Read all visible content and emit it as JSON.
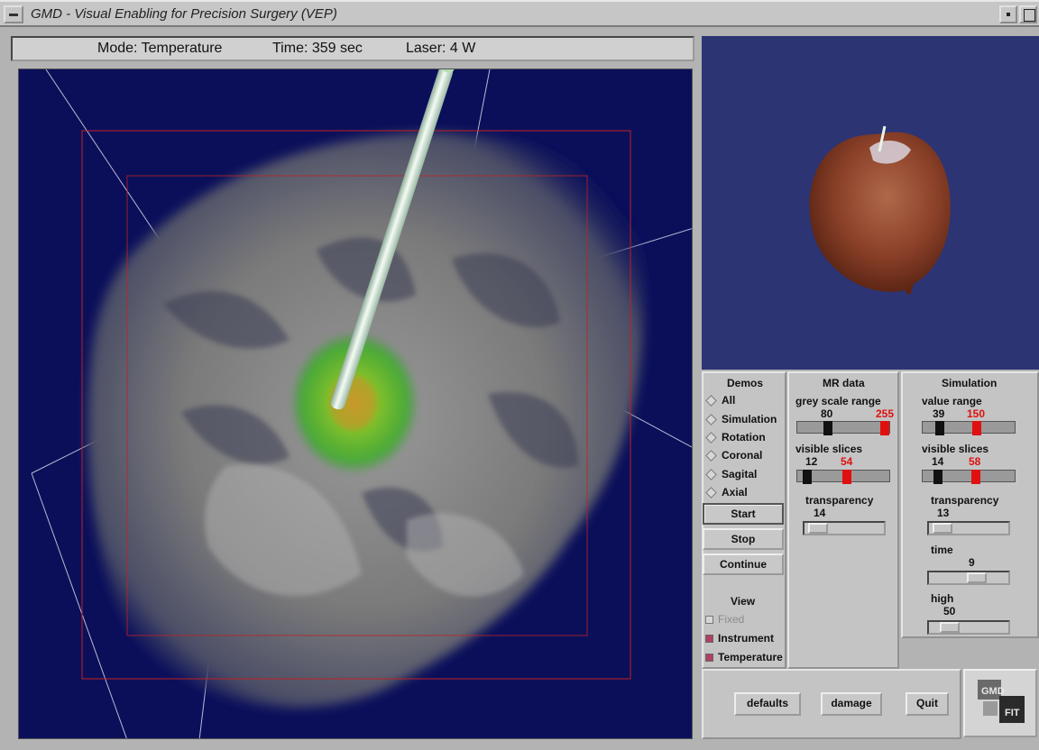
{
  "window": {
    "title": "GMD - Visual Enabling for Precision Surgery (VEP)"
  },
  "status": {
    "mode": "Mode: Temperature",
    "time": "Time: 359 sec",
    "laser": "Laser: 4 W"
  },
  "demos": {
    "heading": "Demos",
    "items": [
      "All",
      "Simulation",
      "Rotation",
      "Coronal",
      "Sagital",
      "Axial"
    ],
    "buttons": {
      "start": "Start",
      "stop": "Stop",
      "continue": "Continue"
    }
  },
  "view": {
    "heading": "View",
    "fixed": {
      "label": "Fixed",
      "checked": false,
      "disabled": true
    },
    "instrument": {
      "label": "Instrument",
      "checked": true
    },
    "temperature": {
      "label": "Temperature",
      "checked": true
    }
  },
  "mr_data": {
    "heading": "MR data",
    "grey_scale_range": {
      "label": "grey scale range",
      "low": "80",
      "high": "255"
    },
    "visible_slices": {
      "label": "visible slices",
      "low": "12",
      "high": "54"
    },
    "transparency": {
      "label": "transparency",
      "value": "14"
    }
  },
  "simulation": {
    "heading": "Simulation",
    "value_range": {
      "label": "value range",
      "low": "39",
      "high": "150"
    },
    "visible_slices": {
      "label": "visible slices",
      "low": "14",
      "high": "58"
    },
    "transparency": {
      "label": "transparency",
      "value": "13"
    },
    "time": {
      "label": "time",
      "value": "9"
    },
    "high": {
      "label": "high",
      "value": "50"
    }
  },
  "footer": {
    "defaults": "defaults",
    "damage": "damage",
    "quit": "Quit",
    "logo_text": "GMD FIT"
  },
  "colors": {
    "viewport_bg": "#0b0f5a",
    "preview_bg": "#2c3474",
    "panel_bg": "#c4c4c4",
    "accent_red": "#e01010",
    "checkbox_checked": "#b04060"
  },
  "icons": {
    "window_menu": "window-menu-icon",
    "minimize": "minimize-icon",
    "maximize": "maximize-icon",
    "logo": "gmd-logo-icon"
  }
}
